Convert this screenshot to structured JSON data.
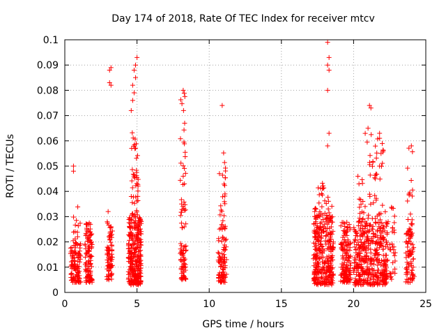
{
  "chart_data": {
    "type": "scatter",
    "title": "Day 174 of 2018, Rate Of TEC Index for receiver mtcv",
    "xlabel": "GPS time / hours",
    "ylabel": "ROTI / TECUs",
    "xlim": [
      0,
      25
    ],
    "ylim": [
      0,
      0.1
    ],
    "xticks": [
      "0",
      "5",
      "10",
      "15",
      "20",
      "25"
    ],
    "yticks": [
      "0",
      "0.01",
      "0.02",
      "0.03",
      "0.04",
      "0.05",
      "0.06",
      "0.07",
      "0.08",
      "0.09",
      "0.1"
    ],
    "grid": true,
    "marker": "+",
    "series_color": "#ff0000",
    "series": [
      {
        "name": "ROTI",
        "clusters": [
          {
            "x_range": [
              0.4,
              1.1
            ],
            "y_range": [
              0.004,
              0.02
            ],
            "count": 110
          },
          {
            "x_range": [
              0.5,
              1.1
            ],
            "y_range": [
              0.02,
              0.037
            ],
            "count": 12
          },
          {
            "x_range": [
              1.4,
              1.9
            ],
            "y_range": [
              0.004,
              0.028
            ],
            "count": 110
          },
          {
            "x_range": [
              2.9,
              3.3
            ],
            "y_range": [
              0.005,
              0.028
            ],
            "count": 80
          },
          {
            "x_range": [
              4.4,
              5.3
            ],
            "y_range": [
              0.003,
              0.03
            ],
            "count": 280
          },
          {
            "x_range": [
              4.6,
              5.1
            ],
            "y_range": [
              0.03,
              0.065
            ],
            "count": 45
          },
          {
            "x_range": [
              8.0,
              8.4
            ],
            "y_range": [
              0.005,
              0.02
            ],
            "count": 55
          },
          {
            "x_range": [
              8.0,
              8.4
            ],
            "y_range": [
              0.025,
              0.079
            ],
            "count": 35
          },
          {
            "x_range": [
              10.6,
              11.2
            ],
            "y_range": [
              0.004,
              0.022
            ],
            "count": 80
          },
          {
            "x_range": [
              10.7,
              11.2
            ],
            "y_range": [
              0.025,
              0.058
            ],
            "count": 30
          },
          {
            "x_range": [
              17.2,
              18.6
            ],
            "y_range": [
              0.003,
              0.03
            ],
            "count": 320
          },
          {
            "x_range": [
              17.3,
              18.5
            ],
            "y_range": [
              0.03,
              0.044
            ],
            "count": 35
          },
          {
            "x_range": [
              19.1,
              19.8
            ],
            "y_range": [
              0.004,
              0.028
            ],
            "count": 150
          },
          {
            "x_range": [
              20.0,
              22.4
            ],
            "y_range": [
              0.003,
              0.028
            ],
            "count": 420
          },
          {
            "x_range": [
              20.3,
              22.2
            ],
            "y_range": [
              0.028,
              0.066
            ],
            "count": 60
          },
          {
            "x_range": [
              22.5,
              22.9
            ],
            "y_range": [
              0.005,
              0.034
            ],
            "count": 30
          },
          {
            "x_range": [
              23.6,
              24.2
            ],
            "y_range": [
              0.004,
              0.025
            ],
            "count": 80
          },
          {
            "x_range": [
              23.7,
              24.1
            ],
            "y_range": [
              0.025,
              0.058
            ],
            "count": 18
          }
        ],
        "points": [
          {
            "x": 0.6,
            "y": 0.05
          },
          {
            "x": 0.6,
            "y": 0.048
          },
          {
            "x": 3.1,
            "y": 0.088
          },
          {
            "x": 3.2,
            "y": 0.089
          },
          {
            "x": 3.1,
            "y": 0.083
          },
          {
            "x": 3.2,
            "y": 0.082
          },
          {
            "x": 3.0,
            "y": 0.032
          },
          {
            "x": 4.8,
            "y": 0.088
          },
          {
            "x": 4.9,
            "y": 0.09
          },
          {
            "x": 5.0,
            "y": 0.093
          },
          {
            "x": 4.9,
            "y": 0.085
          },
          {
            "x": 4.7,
            "y": 0.082
          },
          {
            "x": 4.8,
            "y": 0.079
          },
          {
            "x": 4.7,
            "y": 0.076
          },
          {
            "x": 4.6,
            "y": 0.072
          },
          {
            "x": 8.2,
            "y": 0.08
          },
          {
            "x": 8.3,
            "y": 0.067
          },
          {
            "x": 8.2,
            "y": 0.046
          },
          {
            "x": 10.9,
            "y": 0.074
          },
          {
            "x": 18.2,
            "y": 0.099
          },
          {
            "x": 18.3,
            "y": 0.093
          },
          {
            "x": 18.2,
            "y": 0.09
          },
          {
            "x": 18.3,
            "y": 0.088
          },
          {
            "x": 18.2,
            "y": 0.08
          },
          {
            "x": 18.3,
            "y": 0.063
          },
          {
            "x": 18.2,
            "y": 0.058
          },
          {
            "x": 21.1,
            "y": 0.074
          },
          {
            "x": 21.2,
            "y": 0.073
          },
          {
            "x": 21.0,
            "y": 0.065
          },
          {
            "x": 21.8,
            "y": 0.063
          },
          {
            "x": 21.8,
            "y": 0.061
          },
          {
            "x": 21.9,
            "y": 0.055
          },
          {
            "x": 21.8,
            "y": 0.05
          },
          {
            "x": 20.3,
            "y": 0.046
          },
          {
            "x": 21.5,
            "y": 0.045
          },
          {
            "x": 24.0,
            "y": 0.058
          }
        ]
      }
    ]
  }
}
